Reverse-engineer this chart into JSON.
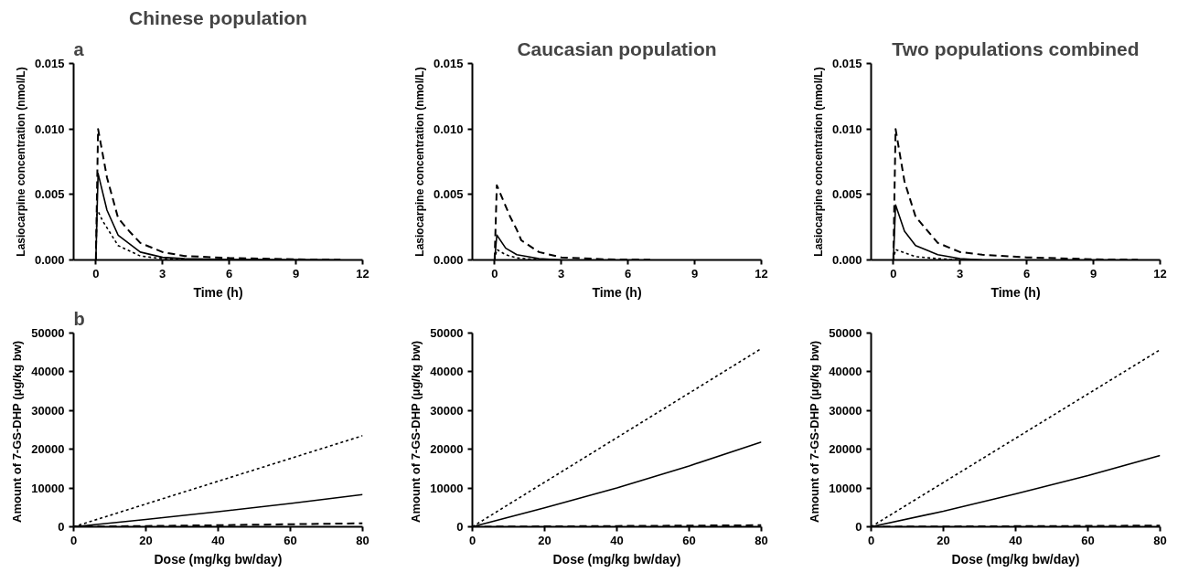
{
  "chart_data": [
    {
      "type": "line",
      "title": "Chinese population",
      "annotations": [
        "a"
      ],
      "xlabel": "Time (h)",
      "ylabel": "Lasiocarpine concentration (nmol/L)",
      "xlim": [
        -1,
        12
      ],
      "xticks": [
        0,
        3,
        6,
        9,
        12
      ],
      "ylim": [
        0,
        0.015
      ],
      "yticks": [
        {
          "value": 0,
          "label": "0.000"
        },
        {
          "value": 0.005,
          "label": "0.005"
        },
        {
          "value": 0.01,
          "label": "0.010"
        },
        {
          "value": 0.015,
          "label": "0.015"
        }
      ],
      "series": [
        {
          "color": "#000000",
          "line_style": "solid",
          "x": [
            0,
            0.1,
            0.5,
            1,
            2,
            3,
            4,
            6,
            9,
            11
          ],
          "values": [
            0,
            0.0066,
            0.0038,
            0.0019,
            0.0006,
            0.0002,
            0.0001,
            3e-05,
            1e-05,
            0
          ]
        },
        {
          "color": "#000000",
          "line_style": "dashed",
          "x": [
            0,
            0.1,
            0.5,
            1,
            1.5,
            2,
            3,
            4,
            6,
            9,
            11
          ],
          "values": [
            0,
            0.01,
            0.0063,
            0.0032,
            0.0022,
            0.0013,
            0.0006,
            0.0003,
            0.00015,
            5e-05,
            2e-05
          ]
        },
        {
          "color": "#000000",
          "line_style": "dotted",
          "x": [
            0,
            0.05,
            0.3,
            1,
            2,
            3,
            4,
            6
          ],
          "values": [
            0,
            0.0039,
            0.003,
            0.0011,
            0.0003,
            0.0001,
            3e-05,
            0
          ]
        }
      ]
    },
    {
      "type": "line",
      "title": "Caucasian population",
      "xlabel": "Time (h)",
      "ylabel": "Lasiocarpine concentration (nmol/L)",
      "xlim": [
        -1,
        12
      ],
      "xticks": [
        0,
        3,
        6,
        9,
        12
      ],
      "ylim": [
        0,
        0.015
      ],
      "yticks": [
        {
          "value": 0,
          "label": "0.000"
        },
        {
          "value": 0.005,
          "label": "0.005"
        },
        {
          "value": 0.01,
          "label": "0.010"
        },
        {
          "value": 0.015,
          "label": "0.015"
        }
      ],
      "series": [
        {
          "color": "#000000",
          "line_style": "solid",
          "x": [
            0,
            0.1,
            0.5,
            1,
            2,
            3
          ],
          "values": [
            0,
            0.0019,
            0.0009,
            0.0004,
            0.0001,
            0
          ]
        },
        {
          "color": "#000000",
          "line_style": "dashed",
          "x": [
            0,
            0.1,
            0.7,
            1,
            1.2,
            2,
            3,
            5,
            7
          ],
          "values": [
            0,
            0.0057,
            0.0033,
            0.0023,
            0.0015,
            0.0006,
            0.0002,
            5e-05,
            2e-05
          ]
        },
        {
          "color": "#000000",
          "line_style": "dotted",
          "x": [
            0,
            0.1,
            0.5,
            1,
            2
          ],
          "values": [
            0,
            0.0008,
            0.0004,
            0.00015,
            3e-05
          ]
        }
      ]
    },
    {
      "type": "line",
      "title": "Two populations combined",
      "xlabel": "Time (h)",
      "ylabel": "Lasiocarpine concentration (nmol/L)",
      "xlim": [
        -1,
        12
      ],
      "xticks": [
        0,
        3,
        6,
        9,
        12
      ],
      "ylim": [
        0,
        0.015
      ],
      "yticks": [
        {
          "value": 0,
          "label": "0.000"
        },
        {
          "value": 0.005,
          "label": "0.005"
        },
        {
          "value": 0.01,
          "label": "0.010"
        },
        {
          "value": 0.015,
          "label": "0.015"
        }
      ],
      "series": [
        {
          "color": "#000000",
          "line_style": "solid",
          "x": [
            0,
            0.1,
            0.5,
            1,
            2,
            3,
            4
          ],
          "values": [
            0,
            0.0042,
            0.0022,
            0.0011,
            0.0004,
            0.0001,
            0
          ]
        },
        {
          "color": "#000000",
          "line_style": "dashed",
          "x": [
            0,
            0.1,
            0.5,
            1,
            2,
            3,
            4,
            6,
            9,
            11
          ],
          "values": [
            0,
            0.01,
            0.006,
            0.0033,
            0.0013,
            0.0006,
            0.0004,
            0.0002,
            5e-05,
            2e-05
          ]
        },
        {
          "color": "#000000",
          "line_style": "dotted",
          "x": [
            0,
            0.1,
            1,
            2,
            3
          ],
          "values": [
            0,
            0.0008,
            0.00025,
            0.0001,
            0
          ]
        }
      ]
    },
    {
      "type": "line",
      "annotations": [
        "b"
      ],
      "xlabel": "Dose (mg/kg bw/day)",
      "ylabel": "Amount of 7-GS-DHP  (μg/kg bw)",
      "xlim": [
        0,
        80
      ],
      "xticks": [
        0,
        20,
        40,
        60,
        80
      ],
      "ylim": [
        0,
        50000
      ],
      "yticks": [
        0,
        10000,
        20000,
        30000,
        40000,
        50000
      ],
      "series": [
        {
          "color": "#000000",
          "line_style": "dotted",
          "x": [
            0,
            80
          ],
          "values": [
            0,
            23500
          ]
        },
        {
          "color": "#000000",
          "line_style": "solid",
          "x": [
            0,
            20,
            40,
            60,
            80
          ],
          "values": [
            0,
            1900,
            3900,
            6000,
            8300
          ]
        },
        {
          "color": "#000000",
          "line_style": "dashed",
          "x": [
            0,
            20,
            40,
            60,
            80
          ],
          "values": [
            0,
            200,
            400,
            650,
            900
          ]
        }
      ]
    },
    {
      "type": "line",
      "xlabel": "Dose (mg/kg bw/day)",
      "ylabel": "Amount of 7-GS-DHP  (μg/kg bw)",
      "xlim": [
        0,
        80
      ],
      "xticks": [
        0,
        20,
        40,
        60,
        80
      ],
      "ylim": [
        0,
        50000
      ],
      "yticks": [
        0,
        10000,
        20000,
        30000,
        40000,
        50000
      ],
      "series": [
        {
          "color": "#000000",
          "line_style": "dotted",
          "x": [
            0,
            80
          ],
          "values": [
            0,
            46000
          ]
        },
        {
          "color": "#000000",
          "line_style": "solid",
          "x": [
            0,
            20,
            40,
            60,
            80
          ],
          "values": [
            0,
            4900,
            10000,
            15700,
            21900
          ]
        },
        {
          "color": "#000000",
          "line_style": "dashed",
          "x": [
            0,
            40,
            80
          ],
          "values": [
            0,
            200,
            400
          ]
        }
      ]
    },
    {
      "type": "line",
      "xlabel": "Dose (mg/kg bw/day)",
      "ylabel": "Amount of 7-GS-DHP  (μg/kg bw)",
      "xlim": [
        0,
        80
      ],
      "xticks": [
        0,
        20,
        40,
        60,
        80
      ],
      "ylim": [
        0,
        50000
      ],
      "yticks": [
        0,
        10000,
        20000,
        30000,
        40000,
        50000
      ],
      "series": [
        {
          "color": "#000000",
          "line_style": "dotted",
          "x": [
            0,
            80
          ],
          "values": [
            0,
            45700
          ]
        },
        {
          "color": "#000000",
          "line_style": "solid",
          "x": [
            0,
            20,
            40,
            60,
            80
          ],
          "values": [
            0,
            4000,
            8500,
            13200,
            18400
          ]
        },
        {
          "color": "#000000",
          "line_style": "dashed",
          "x": [
            0,
            40,
            80
          ],
          "values": [
            0,
            150,
            300
          ]
        }
      ]
    }
  ]
}
